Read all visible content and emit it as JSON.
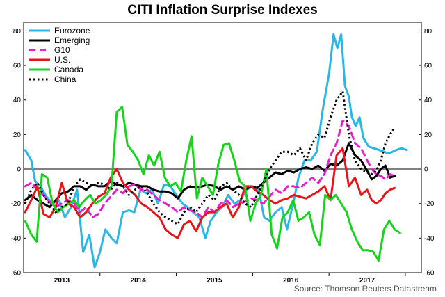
{
  "chart_data": {
    "type": "line",
    "title": "CITI Inflation Surprise Indexes",
    "source": "Source: Thomson Reuters Datastream",
    "xlabel": "",
    "ylabel": "",
    "ylim": [
      -60,
      85
    ],
    "xlim": [
      2012.5,
      2017.71
    ],
    "yticks": [
      80,
      60,
      40,
      20,
      0,
      -20,
      -40,
      -60
    ],
    "xtick_labels": [
      "2013",
      "2014",
      "2015",
      "2016",
      "2017"
    ],
    "xtick_centers": [
      2013,
      2014,
      2015,
      2016,
      2017
    ],
    "year_separators": [
      2013.5,
      2014.5,
      2015.5,
      2016.5,
      2017.5
    ],
    "zero_line": true,
    "legend_position": "top-left",
    "series": [
      {
        "name": "Eurozone",
        "color": "#29b6e8",
        "dash": "solid",
        "x": [
          2012.52,
          2012.6,
          2012.65,
          2012.72,
          2012.8,
          2012.88,
          2012.96,
          2013.04,
          2013.12,
          2013.2,
          2013.28,
          2013.36,
          2013.43,
          2013.5,
          2013.57,
          2013.65,
          2013.72,
          2013.8,
          2013.88,
          2013.95,
          2014.03,
          2014.1,
          2014.18,
          2014.26,
          2014.34,
          2014.42,
          2014.5,
          2014.58,
          2014.65,
          2014.72,
          2014.8,
          2014.88,
          2014.95,
          2015.03,
          2015.1,
          2015.18,
          2015.26,
          2015.34,
          2015.42,
          2015.5,
          2015.58,
          2015.65,
          2015.72,
          2015.8,
          2015.88,
          2015.95,
          2016.03,
          2016.1,
          2016.18,
          2016.26,
          2016.34,
          2016.42,
          2016.5,
          2016.56,
          2016.61,
          2016.66,
          2016.71,
          2016.76,
          2016.8,
          2016.85,
          2016.9,
          2016.95,
          2017.02,
          2017.09,
          2017.16,
          2017.22,
          2017.28,
          2017.33,
          2017.38,
          2017.45,
          2017.52
        ],
        "values": [
          11,
          5,
          -7,
          -10,
          -16,
          -20,
          -18,
          -28,
          -22,
          -12,
          -48,
          -38,
          -57,
          -48,
          -35,
          -40,
          -43,
          -25,
          -24,
          -25,
          -12,
          -14,
          -12,
          -20,
          -9,
          -10,
          -15,
          -20,
          -22,
          -25,
          -28,
          -40,
          -30,
          -25,
          -22,
          -15,
          -20,
          -18,
          -12,
          -10,
          -12,
          -28,
          -30,
          -25,
          -22,
          -35,
          -20,
          -5,
          5,
          5,
          10,
          35,
          55,
          78,
          70,
          78,
          48,
          42,
          30,
          25,
          30,
          18,
          13,
          12,
          11,
          10,
          9,
          10,
          11,
          12,
          11
        ]
      },
      {
        "name": "Emerging",
        "color": "#000000",
        "dash": "solid",
        "x": [
          2012.52,
          2012.6,
          2012.68,
          2012.76,
          2012.84,
          2012.92,
          2013.0,
          2013.08,
          2013.16,
          2013.24,
          2013.32,
          2013.4,
          2013.48,
          2013.56,
          2013.64,
          2013.72,
          2013.8,
          2013.88,
          2013.96,
          2014.04,
          2014.12,
          2014.2,
          2014.28,
          2014.36,
          2014.44,
          2014.52,
          2014.6,
          2014.68,
          2014.76,
          2014.84,
          2014.92,
          2015.0,
          2015.08,
          2015.16,
          2015.24,
          2015.32,
          2015.4,
          2015.48,
          2015.56,
          2015.64,
          2015.72,
          2015.8,
          2015.88,
          2015.96,
          2016.04,
          2016.12,
          2016.2,
          2016.28,
          2016.36,
          2016.44,
          2016.52,
          2016.6,
          2016.68,
          2016.76,
          2016.84,
          2016.92,
          2017.0,
          2017.06,
          2017.12,
          2017.18,
          2017.24,
          2017.3,
          2017.36
        ],
        "values": [
          -18,
          -15,
          -18,
          -20,
          -22,
          -18,
          -14,
          -13,
          -10,
          -10,
          -12,
          -9,
          -10,
          -10,
          -7,
          -9,
          -10,
          -8,
          -9,
          -10,
          -10,
          -12,
          -13,
          -13,
          -14,
          -17,
          -12,
          -10,
          -11,
          -10,
          -9,
          -10,
          -12,
          -10,
          -12,
          -10,
          -12,
          -10,
          -11,
          -8,
          -5,
          -2,
          -3,
          -1,
          -2,
          0,
          1,
          0,
          2,
          -1,
          3,
          2,
          5,
          15,
          8,
          5,
          -1,
          -6,
          -4,
          0,
          2,
          -5,
          -4
        ]
      },
      {
        "name": "G10",
        "color": "#e61ecb",
        "dash": "dash",
        "x": [
          2012.52,
          2012.6,
          2012.68,
          2012.76,
          2012.84,
          2012.92,
          2013.0,
          2013.08,
          2013.16,
          2013.24,
          2013.32,
          2013.4,
          2013.48,
          2013.56,
          2013.64,
          2013.72,
          2013.8,
          2013.88,
          2013.96,
          2014.04,
          2014.12,
          2014.2,
          2014.28,
          2014.36,
          2014.44,
          2014.52,
          2014.6,
          2014.68,
          2014.76,
          2014.84,
          2014.92,
          2015.0,
          2015.08,
          2015.16,
          2015.24,
          2015.32,
          2015.4,
          2015.48,
          2015.56,
          2015.64,
          2015.72,
          2015.8,
          2015.88,
          2015.96,
          2016.04,
          2016.12,
          2016.2,
          2016.28,
          2016.36,
          2016.44,
          2016.52,
          2016.6,
          2016.68,
          2016.76,
          2016.84,
          2016.92,
          2017.0,
          2017.06,
          2017.12,
          2017.18,
          2017.24,
          2017.3,
          2017.36
        ],
        "values": [
          -10,
          -8,
          -12,
          -15,
          -19,
          -22,
          -20,
          -18,
          -20,
          -25,
          -22,
          -28,
          -26,
          -20,
          -16,
          -12,
          -14,
          -10,
          -9,
          -12,
          -12,
          -15,
          -18,
          -20,
          -22,
          -25,
          -22,
          -24,
          -25,
          -28,
          -22,
          -25,
          -20,
          -18,
          -22,
          -20,
          -19,
          -17,
          -18,
          -20,
          -16,
          -12,
          -14,
          -10,
          -10,
          -11,
          -8,
          -5,
          -8,
          -3,
          8,
          15,
          28,
          25,
          15,
          12,
          5,
          0,
          -3,
          -4,
          -6,
          -3,
          -4
        ]
      },
      {
        "name": "U.S.",
        "color": "#e8141a",
        "dash": "solid",
        "x": [
          2012.52,
          2012.6,
          2012.68,
          2012.76,
          2012.84,
          2012.92,
          2013.0,
          2013.08,
          2013.16,
          2013.24,
          2013.32,
          2013.4,
          2013.48,
          2013.56,
          2013.64,
          2013.72,
          2013.8,
          2013.88,
          2013.96,
          2014.04,
          2014.12,
          2014.2,
          2014.28,
          2014.36,
          2014.44,
          2014.52,
          2014.6,
          2014.68,
          2014.76,
          2014.84,
          2014.92,
          2015.0,
          2015.08,
          2015.16,
          2015.24,
          2015.32,
          2015.4,
          2015.48,
          2015.56,
          2015.64,
          2015.72,
          2015.8,
          2015.88,
          2015.96,
          2016.04,
          2016.12,
          2016.2,
          2016.28,
          2016.36,
          2016.44,
          2016.52,
          2016.6,
          2016.68,
          2016.76,
          2016.84,
          2016.92,
          2017.0,
          2017.06,
          2017.12,
          2017.18,
          2017.24,
          2017.3,
          2017.36
        ],
        "values": [
          -25,
          -18,
          -10,
          -26,
          -28,
          -22,
          -8,
          -20,
          -22,
          -28,
          -25,
          -20,
          -16,
          -14,
          -5,
          0,
          -8,
          -12,
          -15,
          -20,
          -22,
          -25,
          -28,
          -35,
          -38,
          -40,
          -32,
          -30,
          -36,
          -28,
          -25,
          -25,
          -22,
          -20,
          -28,
          -22,
          -10,
          -10,
          -13,
          -15,
          -18,
          -20,
          -18,
          -17,
          -15,
          -16,
          -17,
          -15,
          -13,
          -10,
          -18,
          8,
          12,
          -10,
          -5,
          -15,
          -12,
          -18,
          -20,
          -18,
          -14,
          -12,
          -11
        ]
      },
      {
        "name": "Canada",
        "color": "#16d41a",
        "dash": "solid",
        "x": [
          2012.52,
          2012.6,
          2012.67,
          2012.74,
          2012.81,
          2012.88,
          2012.95,
          2013.02,
          2013.09,
          2013.16,
          2013.23,
          2013.3,
          2013.37,
          2013.44,
          2013.51,
          2013.58,
          2013.65,
          2013.72,
          2013.79,
          2013.86,
          2013.93,
          2014.0,
          2014.07,
          2014.14,
          2014.21,
          2014.28,
          2014.35,
          2014.42,
          2014.49,
          2014.56,
          2014.63,
          2014.7,
          2014.77,
          2014.84,
          2014.91,
          2014.98,
          2015.05,
          2015.12,
          2015.19,
          2015.26,
          2015.33,
          2015.4,
          2015.47,
          2015.54,
          2015.61,
          2015.68,
          2015.75,
          2015.82,
          2015.89,
          2015.96,
          2016.03,
          2016.1,
          2016.17,
          2016.24,
          2016.31,
          2016.38,
          2016.45,
          2016.52,
          2016.59,
          2016.66,
          2016.73,
          2016.8,
          2016.87,
          2016.94,
          2017.01,
          2017.08,
          2017.15,
          2017.22,
          2017.29,
          2017.36,
          2017.43
        ],
        "values": [
          -30,
          -38,
          -42,
          -3,
          -5,
          -20,
          -25,
          -22,
          -20,
          -18,
          -22,
          -18,
          -15,
          -20,
          -18,
          -15,
          -10,
          33,
          36,
          14,
          10,
          5,
          -3,
          8,
          2,
          10,
          -5,
          -10,
          -8,
          -13,
          5,
          19,
          -17,
          -5,
          -10,
          -15,
          3,
          14,
          15,
          5,
          -7,
          -10,
          -30,
          -20,
          -15,
          0,
          -38,
          -46,
          -28,
          -25,
          -18,
          -30,
          -28,
          -25,
          -38,
          -44,
          -15,
          -18,
          -15,
          -20,
          -25,
          -35,
          -42,
          -47,
          -47,
          -48,
          -53,
          -35,
          -30,
          -35,
          -37
        ]
      },
      {
        "name": "China",
        "color": "#000000",
        "dash": "dot",
        "x": [
          2012.52,
          2012.6,
          2012.68,
          2012.76,
          2012.84,
          2012.92,
          2013.0,
          2013.08,
          2013.16,
          2013.24,
          2013.32,
          2013.4,
          2013.48,
          2013.56,
          2013.64,
          2013.72,
          2013.8,
          2013.88,
          2013.96,
          2014.04,
          2014.12,
          2014.2,
          2014.28,
          2014.36,
          2014.44,
          2014.52,
          2014.6,
          2014.68,
          2014.76,
          2014.84,
          2014.92,
          2015.0,
          2015.08,
          2015.16,
          2015.24,
          2015.32,
          2015.4,
          2015.48,
          2015.56,
          2015.64,
          2015.72,
          2015.8,
          2015.88,
          2015.96,
          2016.04,
          2016.12,
          2016.2,
          2016.28,
          2016.36,
          2016.44,
          2016.52,
          2016.6,
          2016.68,
          2016.76,
          2016.84,
          2016.92,
          2017.0,
          2017.06,
          2017.12,
          2017.18,
          2017.24,
          2017.3,
          2017.36
        ],
        "values": [
          -20,
          -12,
          -8,
          -15,
          -20,
          -25,
          -22,
          -20,
          -10,
          -6,
          -8,
          -10,
          -8,
          -9,
          -12,
          -8,
          -10,
          -15,
          -12,
          -10,
          -14,
          -20,
          -25,
          -28,
          -30,
          -32,
          -25,
          -22,
          -25,
          -20,
          -15,
          -18,
          -10,
          -8,
          -12,
          -15,
          -20,
          -22,
          -15,
          -8,
          0,
          5,
          10,
          10,
          8,
          12,
          5,
          15,
          20,
          18,
          30,
          40,
          45,
          20,
          5,
          0,
          -2,
          -3,
          -1,
          5,
          15,
          20,
          24
        ]
      }
    ]
  }
}
